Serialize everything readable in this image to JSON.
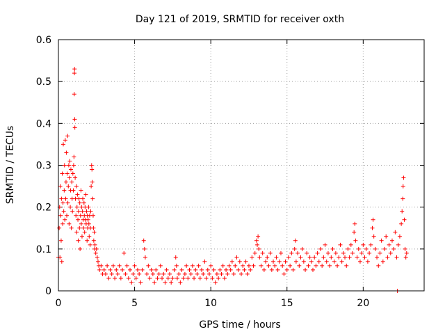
{
  "chart_data": {
    "type": "scatter",
    "title": "Day 121 of 2019, SRMTID for receiver oxth",
    "xlabel": "GPS time / hours",
    "ylabel": "SRMTID / TECUs",
    "xlim": [
      0,
      24
    ],
    "ylim": [
      0,
      0.6
    ],
    "xticks": [
      0,
      5,
      10,
      15,
      20
    ],
    "xtick_labels": [
      "0",
      "5",
      "10",
      "15",
      "20"
    ],
    "yticks": [
      0,
      0.1,
      0.2,
      0.3,
      0.4,
      0.5,
      0.6
    ],
    "ytick_labels": [
      "0",
      "0.1",
      "0.2",
      "0.3",
      "0.4",
      "0.5",
      "0.6"
    ],
    "grid": true,
    "marker": "+",
    "color": "#ff0000",
    "series": [
      {
        "name": "SRMTID",
        "points": [
          [
            0.0,
            0.08
          ],
          [
            0.05,
            0.15
          ],
          [
            0.08,
            0.2
          ],
          [
            0.1,
            0.08
          ],
          [
            0.12,
            0.25
          ],
          [
            0.15,
            0.18
          ],
          [
            0.18,
            0.12
          ],
          [
            0.2,
            0.22
          ],
          [
            0.22,
            0.07
          ],
          [
            0.25,
            0.28
          ],
          [
            0.28,
            0.16
          ],
          [
            0.3,
            0.21
          ],
          [
            0.32,
            0.35
          ],
          [
            0.35,
            0.19
          ],
          [
            0.38,
            0.24
          ],
          [
            0.4,
            0.3
          ],
          [
            0.42,
            0.17
          ],
          [
            0.45,
            0.36
          ],
          [
            0.48,
            0.22
          ],
          [
            0.5,
            0.26
          ],
          [
            0.52,
            0.33
          ],
          [
            0.55,
            0.18
          ],
          [
            0.58,
            0.28
          ],
          [
            0.6,
            0.37
          ],
          [
            0.62,
            0.21
          ],
          [
            0.65,
            0.25
          ],
          [
            0.68,
            0.3
          ],
          [
            0.7,
            0.16
          ],
          [
            0.72,
            0.27
          ],
          [
            0.75,
            0.31
          ],
          [
            0.78,
            0.2
          ],
          [
            0.8,
            0.24
          ],
          [
            0.82,
            0.29
          ],
          [
            0.85,
            0.15
          ],
          [
            0.88,
            0.26
          ],
          [
            0.9,
            0.22
          ],
          [
            0.92,
            0.19
          ],
          [
            0.95,
            0.28
          ],
          [
            0.98,
            0.24
          ],
          [
            1.0,
            0.3
          ],
          [
            1.02,
            0.32
          ],
          [
            1.04,
            0.47
          ],
          [
            1.05,
            0.52
          ],
          [
            1.06,
            0.53
          ],
          [
            1.07,
            0.41
          ],
          [
            1.08,
            0.39
          ],
          [
            1.1,
            0.27
          ],
          [
            1.12,
            0.22
          ],
          [
            1.15,
            0.18
          ],
          [
            1.18,
            0.25
          ],
          [
            1.2,
            0.14
          ],
          [
            1.22,
            0.2
          ],
          [
            1.25,
            0.23
          ],
          [
            1.28,
            0.17
          ],
          [
            1.3,
            0.12
          ],
          [
            1.32,
            0.19
          ],
          [
            1.35,
            0.22
          ],
          [
            1.38,
            0.15
          ],
          [
            1.4,
            0.21
          ],
          [
            1.42,
            0.1
          ],
          [
            1.45,
            0.18
          ],
          [
            1.48,
            0.24
          ],
          [
            1.5,
            0.16
          ],
          [
            1.52,
            0.2
          ],
          [
            1.55,
            0.13
          ],
          [
            1.58,
            0.19
          ],
          [
            1.6,
            0.22
          ],
          [
            1.62,
            0.17
          ],
          [
            1.65,
            0.15
          ],
          [
            1.68,
            0.21
          ],
          [
            1.7,
            0.18
          ],
          [
            1.72,
            0.14
          ],
          [
            1.75,
            0.2
          ],
          [
            1.78,
            0.17
          ],
          [
            1.8,
            0.23
          ],
          [
            1.82,
            0.16
          ],
          [
            1.85,
            0.19
          ],
          [
            1.88,
            0.12
          ],
          [
            1.9,
            0.18
          ],
          [
            1.92,
            0.15
          ],
          [
            1.95,
            0.17
          ],
          [
            1.98,
            0.2
          ],
          [
            2.0,
            0.16
          ],
          [
            2.02,
            0.13
          ],
          [
            2.05,
            0.18
          ],
          [
            2.08,
            0.11
          ],
          [
            2.1,
            0.15
          ],
          [
            2.12,
            0.19
          ],
          [
            2.15,
            0.25
          ],
          [
            2.18,
            0.3
          ],
          [
            2.2,
            0.29
          ],
          [
            2.22,
            0.26
          ],
          [
            2.25,
            0.22
          ],
          [
            2.28,
            0.18
          ],
          [
            2.3,
            0.15
          ],
          [
            2.32,
            0.12
          ],
          [
            2.35,
            0.14
          ],
          [
            2.38,
            0.1
          ],
          [
            2.4,
            0.11
          ],
          [
            2.45,
            0.09
          ],
          [
            2.5,
            0.1
          ],
          [
            2.55,
            0.08
          ],
          [
            2.6,
            0.07
          ],
          [
            2.65,
            0.06
          ],
          [
            2.7,
            0.05
          ],
          [
            2.8,
            0.06
          ],
          [
            2.9,
            0.04
          ],
          [
            3.0,
            0.05
          ],
          [
            3.1,
            0.04
          ],
          [
            3.2,
            0.06
          ],
          [
            3.3,
            0.03
          ],
          [
            3.4,
            0.05
          ],
          [
            3.5,
            0.04
          ],
          [
            3.6,
            0.06
          ],
          [
            3.7,
            0.03
          ],
          [
            3.8,
            0.05
          ],
          [
            3.9,
            0.04
          ],
          [
            4.0,
            0.06
          ],
          [
            4.1,
            0.03
          ],
          [
            4.2,
            0.05
          ],
          [
            4.3,
            0.09
          ],
          [
            4.4,
            0.04
          ],
          [
            4.5,
            0.06
          ],
          [
            4.6,
            0.03
          ],
          [
            4.7,
            0.05
          ],
          [
            4.8,
            0.02
          ],
          [
            4.9,
            0.04
          ],
          [
            5.0,
            0.06
          ],
          [
            5.1,
            0.03
          ],
          [
            5.2,
            0.05
          ],
          [
            5.3,
            0.04
          ],
          [
            5.4,
            0.02
          ],
          [
            5.5,
            0.05
          ],
          [
            5.6,
            0.12
          ],
          [
            5.65,
            0.1
          ],
          [
            5.7,
            0.08
          ],
          [
            5.8,
            0.04
          ],
          [
            5.9,
            0.06
          ],
          [
            6.0,
            0.03
          ],
          [
            6.1,
            0.05
          ],
          [
            6.2,
            0.04
          ],
          [
            6.3,
            0.02
          ],
          [
            6.4,
            0.05
          ],
          [
            6.5,
            0.03
          ],
          [
            6.6,
            0.04
          ],
          [
            6.7,
            0.06
          ],
          [
            6.8,
            0.03
          ],
          [
            6.9,
            0.04
          ],
          [
            7.0,
            0.02
          ],
          [
            7.1,
            0.05
          ],
          [
            7.2,
            0.03
          ],
          [
            7.3,
            0.04
          ],
          [
            7.4,
            0.02
          ],
          [
            7.5,
            0.03
          ],
          [
            7.6,
            0.05
          ],
          [
            7.7,
            0.08
          ],
          [
            7.75,
            0.06
          ],
          [
            7.8,
            0.03
          ],
          [
            7.9,
            0.04
          ],
          [
            8.0,
            0.02
          ],
          [
            8.1,
            0.05
          ],
          [
            8.2,
            0.03
          ],
          [
            8.3,
            0.04
          ],
          [
            8.4,
            0.06
          ],
          [
            8.5,
            0.03
          ],
          [
            8.6,
            0.05
          ],
          [
            8.7,
            0.04
          ],
          [
            8.8,
            0.06
          ],
          [
            8.9,
            0.03
          ],
          [
            9.0,
            0.05
          ],
          [
            9.1,
            0.04
          ],
          [
            9.2,
            0.06
          ],
          [
            9.3,
            0.03
          ],
          [
            9.4,
            0.05
          ],
          [
            9.5,
            0.04
          ],
          [
            9.6,
            0.07
          ],
          [
            9.7,
            0.03
          ],
          [
            9.8,
            0.05
          ],
          [
            9.9,
            0.04
          ],
          [
            10.0,
            0.06
          ],
          [
            10.1,
            0.03
          ],
          [
            10.2,
            0.05
          ],
          [
            10.3,
            0.02
          ],
          [
            10.4,
            0.04
          ],
          [
            10.5,
            0.03
          ],
          [
            10.6,
            0.05
          ],
          [
            10.7,
            0.04
          ],
          [
            10.8,
            0.06
          ],
          [
            10.9,
            0.03
          ],
          [
            11.0,
            0.05
          ],
          [
            11.1,
            0.04
          ],
          [
            11.2,
            0.06
          ],
          [
            11.3,
            0.05
          ],
          [
            11.4,
            0.07
          ],
          [
            11.5,
            0.04
          ],
          [
            11.6,
            0.06
          ],
          [
            11.7,
            0.08
          ],
          [
            11.8,
            0.05
          ],
          [
            11.9,
            0.07
          ],
          [
            12.0,
            0.04
          ],
          [
            12.1,
            0.06
          ],
          [
            12.2,
            0.05
          ],
          [
            12.3,
            0.07
          ],
          [
            12.4,
            0.04
          ],
          [
            12.5,
            0.06
          ],
          [
            12.6,
            0.05
          ],
          [
            12.7,
            0.08
          ],
          [
            12.8,
            0.06
          ],
          [
            12.9,
            0.09
          ],
          [
            13.0,
            0.12
          ],
          [
            13.05,
            0.11
          ],
          [
            13.1,
            0.13
          ],
          [
            13.15,
            0.1
          ],
          [
            13.2,
            0.08
          ],
          [
            13.3,
            0.06
          ],
          [
            13.4,
            0.09
          ],
          [
            13.5,
            0.05
          ],
          [
            13.6,
            0.07
          ],
          [
            13.7,
            0.08
          ],
          [
            13.8,
            0.06
          ],
          [
            13.9,
            0.09
          ],
          [
            14.0,
            0.05
          ],
          [
            14.1,
            0.07
          ],
          [
            14.2,
            0.06
          ],
          [
            14.3,
            0.08
          ],
          [
            14.4,
            0.05
          ],
          [
            14.5,
            0.07
          ],
          [
            14.6,
            0.09
          ],
          [
            14.7,
            0.06
          ],
          [
            14.8,
            0.04
          ],
          [
            14.9,
            0.07
          ],
          [
            15.0,
            0.05
          ],
          [
            15.1,
            0.08
          ],
          [
            15.2,
            0.06
          ],
          [
            15.3,
            0.09
          ],
          [
            15.4,
            0.05
          ],
          [
            15.5,
            0.1
          ],
          [
            15.55,
            0.12
          ],
          [
            15.6,
            0.07
          ],
          [
            15.7,
            0.09
          ],
          [
            15.8,
            0.06
          ],
          [
            15.9,
            0.08
          ],
          [
            16.0,
            0.1
          ],
          [
            16.1,
            0.07
          ],
          [
            16.2,
            0.05
          ],
          [
            16.3,
            0.09
          ],
          [
            16.4,
            0.06
          ],
          [
            16.5,
            0.08
          ],
          [
            16.6,
            0.07
          ],
          [
            16.7,
            0.05
          ],
          [
            16.8,
            0.08
          ],
          [
            16.9,
            0.06
          ],
          [
            17.0,
            0.09
          ],
          [
            17.1,
            0.07
          ],
          [
            17.2,
            0.1
          ],
          [
            17.3,
            0.06
          ],
          [
            17.4,
            0.08
          ],
          [
            17.5,
            0.11
          ],
          [
            17.6,
            0.07
          ],
          [
            17.7,
            0.09
          ],
          [
            17.8,
            0.06
          ],
          [
            17.9,
            0.08
          ],
          [
            18.0,
            0.1
          ],
          [
            18.1,
            0.07
          ],
          [
            18.2,
            0.09
          ],
          [
            18.3,
            0.06
          ],
          [
            18.4,
            0.08
          ],
          [
            18.5,
            0.11
          ],
          [
            18.6,
            0.07
          ],
          [
            18.7,
            0.09
          ],
          [
            18.8,
            0.08
          ],
          [
            18.9,
            0.06
          ],
          [
            19.0,
            0.1
          ],
          [
            19.1,
            0.08
          ],
          [
            19.2,
            0.11
          ],
          [
            19.3,
            0.09
          ],
          [
            19.4,
            0.14
          ],
          [
            19.45,
            0.16
          ],
          [
            19.5,
            0.12
          ],
          [
            19.6,
            0.08
          ],
          [
            19.7,
            0.1
          ],
          [
            19.8,
            0.07
          ],
          [
            19.9,
            0.09
          ],
          [
            20.0,
            0.11
          ],
          [
            20.1,
            0.08
          ],
          [
            20.2,
            0.1
          ],
          [
            20.3,
            0.07
          ],
          [
            20.4,
            0.09
          ],
          [
            20.5,
            0.11
          ],
          [
            20.6,
            0.15
          ],
          [
            20.65,
            0.17
          ],
          [
            20.7,
            0.13
          ],
          [
            20.8,
            0.1
          ],
          [
            20.9,
            0.08
          ],
          [
            21.0,
            0.06
          ],
          [
            21.1,
            0.09
          ],
          [
            21.2,
            0.12
          ],
          [
            21.3,
            0.07
          ],
          [
            21.4,
            0.1
          ],
          [
            21.5,
            0.13
          ],
          [
            21.6,
            0.08
          ],
          [
            21.7,
            0.11
          ],
          [
            21.8,
            0.09
          ],
          [
            21.9,
            0.12
          ],
          [
            22.0,
            0.1
          ],
          [
            22.1,
            0.14
          ],
          [
            22.2,
            0.08
          ],
          [
            22.25,
            0.0
          ],
          [
            22.3,
            0.11
          ],
          [
            22.4,
            0.13
          ],
          [
            22.5,
            0.16
          ],
          [
            22.55,
            0.19
          ],
          [
            22.6,
            0.22
          ],
          [
            22.62,
            0.25
          ],
          [
            22.65,
            0.27
          ],
          [
            22.7,
            0.17
          ],
          [
            22.75,
            0.1
          ],
          [
            22.8,
            0.08
          ],
          [
            22.85,
            0.09
          ]
        ]
      }
    ]
  }
}
